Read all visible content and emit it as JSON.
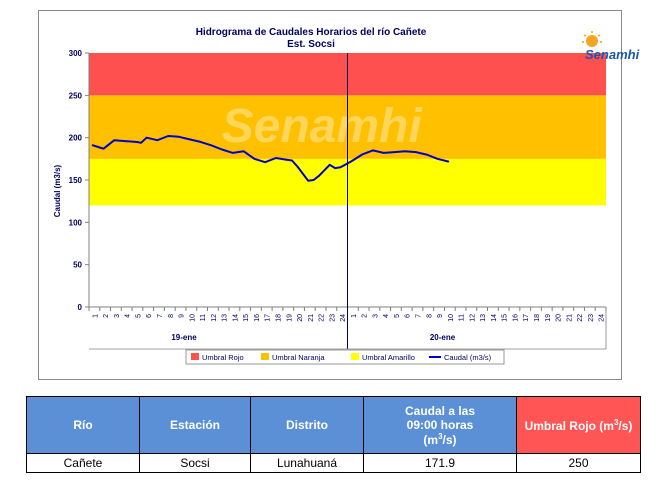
{
  "chart_data": {
    "type": "line",
    "title": "Hidrograma de Caudales Horarios del río Cañete",
    "subtitle": "Est. Socsi",
    "ylabel": "Caudal  (m3/s)",
    "ylim": [
      0,
      300
    ],
    "yticks": [
      "0",
      "50",
      "100",
      "150",
      "200",
      "250",
      "300"
    ],
    "xtick_labels": [
      "1",
      "2",
      "3",
      "4",
      "5",
      "6",
      "7",
      "8",
      "9",
      "10",
      "11",
      "12",
      "13",
      "14",
      "15",
      "16",
      "17",
      "18",
      "19",
      "20",
      "21",
      "22",
      "23",
      "24",
      "1",
      "2",
      "3",
      "4",
      "5",
      "6",
      "7",
      "8",
      "9",
      "10",
      "11",
      "12",
      "13",
      "14",
      "15",
      "16",
      "17",
      "18",
      "19",
      "20",
      "21",
      "22",
      "23",
      "24"
    ],
    "day_labels": [
      "19-ene",
      "20-ene"
    ],
    "bands": [
      {
        "name": "Umbral Amarillo",
        "from": 120,
        "to": 175,
        "color": "#ffff00"
      },
      {
        "name": "Umbral Naranja",
        "from": 175,
        "to": 250,
        "color": "#ffc000"
      },
      {
        "name": "Umbral Rojo",
        "from": 250,
        "to": 300,
        "color": "#ff5050"
      }
    ],
    "series": [
      {
        "name": "Caudal (m3/s)",
        "color": "#0000cc",
        "x": [
          1,
          1.5,
          2,
          3,
          4,
          5,
          5.5,
          6,
          7,
          8,
          9,
          10,
          11,
          12,
          13,
          14,
          15,
          16,
          17,
          18,
          19,
          19.5,
          20,
          21,
          21.5,
          22,
          23,
          23.5,
          24,
          25,
          26,
          27,
          28,
          29,
          30,
          31,
          32,
          33,
          34
        ],
        "values": [
          191,
          189,
          187,
          197,
          196,
          195,
          194,
          200,
          197,
          202,
          201,
          198,
          195,
          191,
          186,
          182,
          184,
          175,
          171,
          176,
          174,
          173,
          166,
          149,
          150,
          155,
          168,
          164,
          165,
          172,
          180,
          185,
          182,
          183,
          184,
          183,
          180,
          175,
          171.9
        ]
      }
    ],
    "legend": [
      {
        "label": "Umbral Rojo",
        "color": "#ff5050",
        "kind": "box"
      },
      {
        "label": "Umbral Naranja",
        "color": "#ffc000",
        "kind": "box"
      },
      {
        "label": "Umbral Amarillo",
        "color": "#ffff00",
        "kind": "box"
      },
      {
        "label": "Caudal (m3/s)",
        "color": "#0000cc",
        "kind": "line"
      }
    ],
    "legend_position": "bottom",
    "grid": false
  },
  "logo": {
    "text": "Senamhi",
    "color": "#1a56b0",
    "sun_color": "#f5a623"
  },
  "watermark": "Senamhi",
  "table": {
    "headers": {
      "rio": "Río",
      "estacion": "Estación",
      "distrito": "Distrito",
      "caudal_line1": "Caudal a las",
      "caudal_line2": "09:00 horas",
      "caudal_unit_pre": "(m",
      "caudal_unit_sup": "3",
      "caudal_unit_post": "/s)",
      "umbral_pre": "Umbral Rojo (m",
      "umbral_sup": "3",
      "umbral_post": "/s)"
    },
    "row": {
      "rio": "Cañete",
      "estacion": "Socsi",
      "distrito": "Lunahuaná",
      "caudal": "171.9",
      "umbral": "250"
    }
  }
}
